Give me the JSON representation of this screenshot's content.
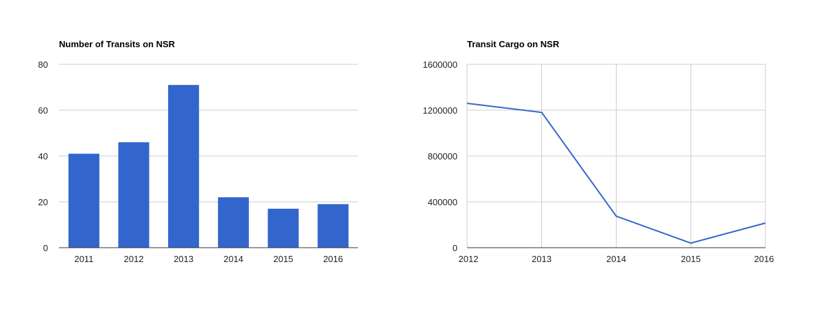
{
  "chart_data": [
    {
      "type": "bar",
      "title": "Number of Transits on NSR",
      "xlabel": "",
      "ylabel": "",
      "categories": [
        "2011",
        "2012",
        "2013",
        "2014",
        "2015",
        "2016"
      ],
      "values": [
        41,
        46,
        71,
        22,
        17,
        19
      ],
      "ylim": [
        0,
        80
      ],
      "yticks": [
        "0",
        "20",
        "40",
        "60",
        "80"
      ],
      "grid": true,
      "legend": "none",
      "color": "#3366cc"
    },
    {
      "type": "line",
      "title": "Transit Cargo on NSR",
      "xlabel": "",
      "ylabel": "",
      "x": [
        2012,
        2013,
        2014,
        2015,
        2016
      ],
      "xticks": [
        "2012",
        "2013",
        "2014",
        "2015",
        "2016"
      ],
      "values": [
        1260000,
        1180000,
        275000,
        40000,
        215000
      ],
      "ylim": [
        0,
        1600000
      ],
      "yticks": [
        "0",
        "400000",
        "800000",
        "1200000",
        "1600000"
      ],
      "grid": true,
      "legend": "none",
      "color": "#3366cc"
    }
  ]
}
